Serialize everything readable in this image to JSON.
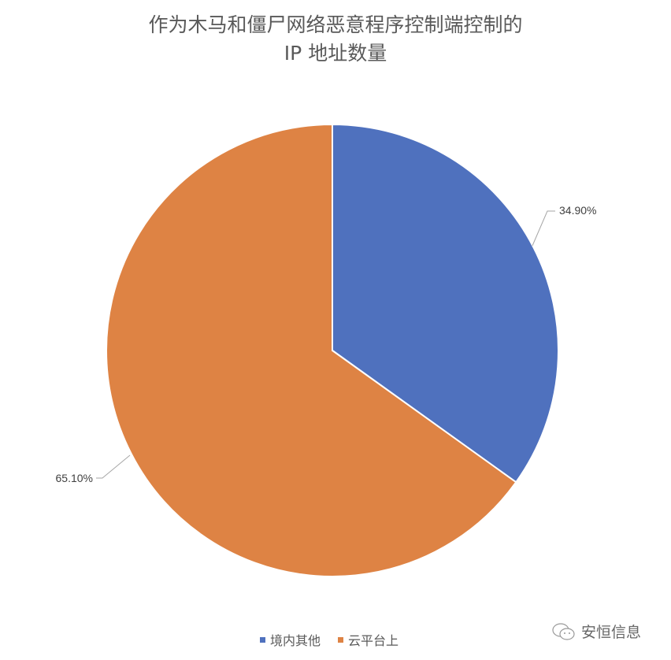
{
  "chart_data": {
    "type": "pie",
    "title_line1": "作为木马和僵尸网络恶意程序控制端控制的",
    "title_line2": "IP 地址数量",
    "slices": [
      {
        "name": "境内其他",
        "value": 34.9,
        "label": "34.90%",
        "color": "#4F71BE"
      },
      {
        "name": "云平台上",
        "value": 65.1,
        "label": "65.10%",
        "color": "#DE8344"
      }
    ],
    "start_angle": "top, clockwise",
    "legend_position": "bottom"
  },
  "watermark": {
    "text": "安恒信息",
    "icon": "wechat-icon"
  }
}
